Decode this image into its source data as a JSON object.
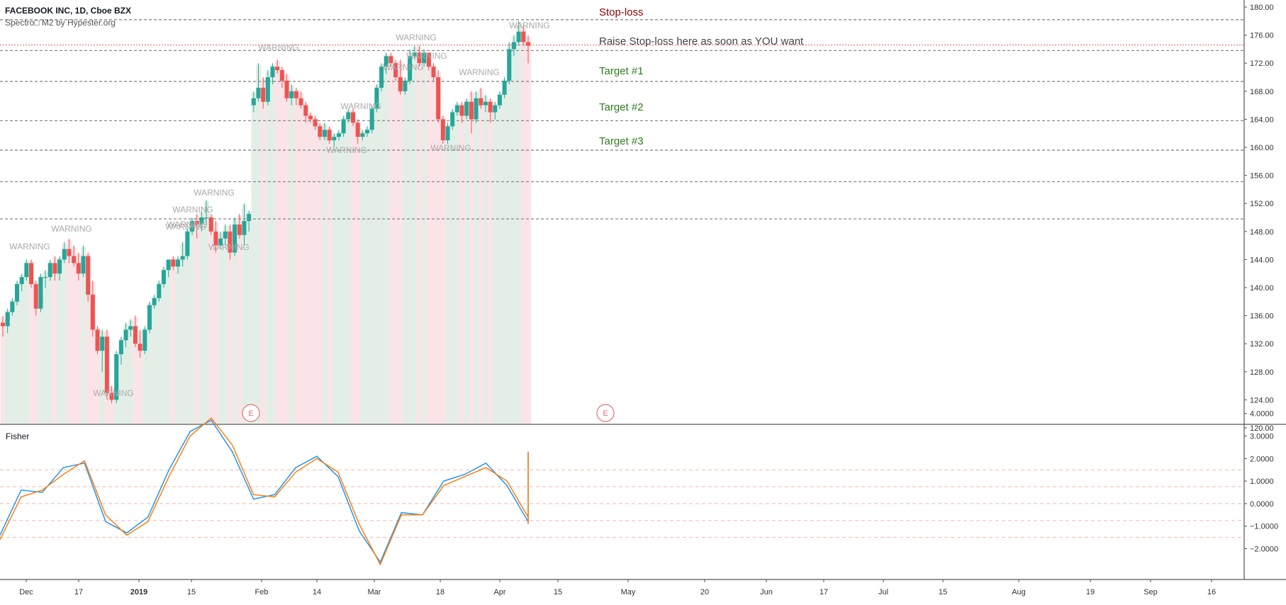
{
  "header": {
    "title": "FACEBOOK INC, 1D, Cboe BZX",
    "indicator": "Spectro□ M2 by Hypester.org"
  },
  "lower_pane": {
    "label": "Fisher"
  },
  "annotations": {
    "stop_loss": "Stop-loss",
    "raise_stop": "Raise Stop-loss here as soon as YOU want",
    "target1": "Target #1",
    "target2": "Target #2",
    "target3": "Target #3",
    "warning": "WARNING",
    "earnings": "E"
  },
  "colors": {
    "up": "#26a69a",
    "down": "#ef5350",
    "fisher_blue": "#2196f3",
    "fisher_orange": "#ff7f0e",
    "stop_red": "#8b0000",
    "target_green": "#2e7d1f",
    "bg_green": "#e3efe6",
    "bg_red": "#fbe4e8"
  },
  "chart_data": [
    {
      "type": "candlestick",
      "title": "FACEBOOK INC, 1D, Cboe BZX",
      "ylim": [
        120,
        180
      ],
      "y_ticks": [
        "180.00",
        "176.00",
        "172.00",
        "168.00",
        "164.00",
        "160.00",
        "156.00",
        "152.00",
        "148.00",
        "144.00",
        "140.00",
        "136.00",
        "132.00",
        "128.00",
        "124.00",
        "120.00"
      ],
      "x_ticks": [
        "Dec",
        "17",
        "2019",
        "15",
        "Feb",
        "14",
        "Mar",
        "18",
        "Apr",
        "15",
        "May",
        "20",
        "Jun",
        "17",
        "Jul",
        "15",
        "Aug",
        "19",
        "Sep",
        "16"
      ],
      "horizontal_levels": [
        {
          "value": 178.2,
          "label": "Stop-loss"
        },
        {
          "value": 174.6,
          "label": "Raise Stop-loss here as soon as YOU want"
        },
        {
          "value": 173.8,
          "label": ""
        },
        {
          "value": 169.4,
          "label": "Target #1"
        },
        {
          "value": 163.8,
          "label": "Target #2"
        },
        {
          "value": 159.6,
          "label": "Target #3"
        },
        {
          "value": 155.1,
          "label": ""
        },
        {
          "value": 149.8,
          "label": ""
        }
      ],
      "series": [
        {
          "name": "FACEBOOK INC",
          "ohlc": [
            [
              135,
              136,
              133,
              134.5
            ],
            [
              134.5,
              137,
              133.5,
              136.5
            ],
            [
              136.5,
              138.5,
              136,
              138
            ],
            [
              138,
              141,
              137.5,
              140.5
            ],
            [
              140.5,
              142,
              139.5,
              141.5
            ],
            [
              141.5,
              144,
              141,
              143.5
            ],
            [
              143.5,
              144,
              140,
              140.5
            ],
            [
              140.5,
              141,
              136,
              137
            ],
            [
              137,
              142,
              136.5,
              141.5
            ],
            [
              141.5,
              142.5,
              140,
              141.5
            ],
            [
              141.5,
              144,
              141,
              143.5
            ],
            [
              143.5,
              144.5,
              141,
              142
            ],
            [
              142,
              144.5,
              141,
              144
            ],
            [
              144,
              146.5,
              143.5,
              145.5
            ],
            [
              145.5,
              147,
              143.5,
              144.5
            ],
            [
              144.5,
              146,
              143,
              143.5
            ],
            [
              143.5,
              145,
              141,
              142
            ],
            [
              142,
              146,
              141.5,
              144.5
            ],
            [
              144.5,
              145,
              138,
              139
            ],
            [
              139,
              141,
              133,
              134
            ],
            [
              134,
              134.5,
              130.5,
              131
            ],
            [
              131,
              134,
              128,
              133
            ],
            [
              133,
              134,
              124,
              125
            ],
            [
              125,
              126,
              123.5,
              124
            ],
            [
              124,
              131,
              123.5,
              130.5
            ],
            [
              130.5,
              133,
              129,
              132.5
            ],
            [
              132.5,
              135,
              131.5,
              134
            ],
            [
              134,
              135.5,
              133,
              134.5
            ],
            [
              134.5,
              136,
              131.5,
              132
            ],
            [
              132,
              134,
              130,
              131
            ],
            [
              131,
              134.5,
              130.5,
              134
            ],
            [
              134,
              138,
              133.5,
              137.5
            ],
            [
              137.5,
              139,
              137,
              138.5
            ],
            [
              138.5,
              141,
              138,
              140.5
            ],
            [
              140.5,
              143,
              140,
              142.5
            ],
            [
              142.5,
              144,
              141.5,
              144
            ],
            [
              144,
              144.5,
              142.5,
              143
            ],
            [
              143,
              144.5,
              142,
              144
            ],
            [
              144,
              146.5,
              143,
              144.5
            ],
            [
              144.5,
              148.5,
              144,
              148
            ],
            [
              148,
              150,
              147.5,
              149.5
            ],
            [
              149.5,
              150.5,
              147,
              149
            ],
            [
              149,
              151,
              148,
              150
            ],
            [
              150,
              152.5,
              149,
              150
            ],
            [
              150,
              150.5,
              147.5,
              148
            ],
            [
              148,
              149.5,
              145,
              146
            ],
            [
              146,
              148,
              145.5,
              147
            ],
            [
              147,
              149,
              146,
              148
            ],
            [
              148,
              149,
              144,
              145
            ],
            [
              145,
              150,
              144.5,
              149
            ],
            [
              149,
              150.5,
              147,
              147.5
            ],
            [
              147.5,
              152,
              146,
              149.5
            ],
            [
              149.5,
              151,
              148,
              150.5
            ],
            [
              166,
              168,
              165,
              167
            ],
            [
              167,
              172,
              166.5,
              168.5
            ],
            [
              168.5,
              170,
              165.5,
              166.5
            ],
            [
              166.5,
              171,
              166,
              170
            ],
            [
              170,
              172,
              169,
              171.5
            ],
            [
              171.5,
              172.5,
              170.5,
              171
            ],
            [
              171,
              171.5,
              168.5,
              169.5
            ],
            [
              169.5,
              170.5,
              166.5,
              167
            ],
            [
              167,
              169,
              166,
              168
            ],
            [
              168,
              168.5,
              166,
              167
            ],
            [
              167,
              168,
              165.5,
              166
            ],
            [
              166,
              166.5,
              163.5,
              164.5
            ],
            [
              164.5,
              165,
              163.5,
              164
            ],
            [
              164,
              164.5,
              162.5,
              163
            ],
            [
              163,
              163.5,
              161,
              161.5
            ],
            [
              161.5,
              163.5,
              161,
              162.5
            ],
            [
              162.5,
              163,
              160.5,
              161
            ],
            [
              161,
              162,
              160,
              161.5
            ],
            [
              161.5,
              162.5,
              161,
              162
            ],
            [
              162,
              164.5,
              161.5,
              164
            ],
            [
              164,
              165.5,
              163.5,
              165
            ],
            [
              165,
              165.5,
              163,
              163.5
            ],
            [
              163.5,
              164,
              160.5,
              161.5
            ],
            [
              161.5,
              162.5,
              161,
              162
            ],
            [
              162,
              163,
              161.5,
              162.5
            ],
            [
              162.5,
              166,
              162,
              165.5
            ],
            [
              165.5,
              169,
              165,
              168.5
            ],
            [
              168.5,
              172,
              168,
              171.5
            ],
            [
              171.5,
              173.5,
              170.5,
              173
            ],
            [
              173,
              173.5,
              171.5,
              172
            ],
            [
              172,
              172.5,
              169.5,
              170
            ],
            [
              170,
              172.5,
              167.5,
              168
            ],
            [
              168,
              170,
              167.5,
              169.5
            ],
            [
              169.5,
              174,
              169,
              173
            ],
            [
              173,
              174.5,
              172.5,
              173.5
            ],
            [
              173.5,
              174.5,
              171.5,
              172
            ],
            [
              172,
              174,
              171.5,
              173.5
            ],
            [
              173.5,
              173.5,
              171,
              171.5
            ],
            [
              171.5,
              172,
              169.5,
              170
            ],
            [
              170,
              171,
              163.5,
              164
            ],
            [
              164,
              164.5,
              160.5,
              161
            ],
            [
              161,
              163.5,
              160.5,
              163
            ],
            [
              163,
              165.5,
              162.5,
              165
            ],
            [
              165,
              166.5,
              164.5,
              166
            ],
            [
              166,
              166.5,
              163.5,
              164.5
            ],
            [
              164.5,
              167,
              164,
              166.5
            ],
            [
              166.5,
              168,
              162,
              164
            ],
            [
              164,
              168,
              163.5,
              167
            ],
            [
              167,
              168.5,
              165.5,
              166
            ],
            [
              166,
              167.5,
              165,
              166.5
            ],
            [
              166.5,
              167,
              163.5,
              165
            ],
            [
              165,
              166.5,
              164,
              166
            ],
            [
              166,
              168,
              165.5,
              167.5
            ],
            [
              167.5,
              170,
              167,
              169.5
            ],
            [
              169.5,
              175,
              169,
              174
            ],
            [
              174,
              176,
              173,
              175
            ],
            [
              175,
              178,
              174.5,
              176.5
            ],
            [
              176.5,
              177.5,
              174.5,
              175
            ],
            [
              175,
              176,
              172,
              174.5
            ]
          ]
        }
      ]
    },
    {
      "type": "line",
      "title": "Fisher",
      "ylim": [
        -3.2,
        4.2
      ],
      "y_ticks": [
        "4.0000",
        "3.0000",
        "2.0000",
        "1.0000",
        "0.0000",
        "−1.0000",
        "−2.0000"
      ],
      "levels": [
        1.5,
        0.75,
        0,
        -0.75,
        -1.5
      ],
      "series": [
        {
          "name": "Fisher",
          "color": "#2196f3",
          "x": [
            0,
            3,
            6,
            9,
            12,
            15,
            18,
            21,
            24,
            27,
            30,
            33,
            36,
            39,
            42,
            45,
            48,
            51,
            54,
            57,
            60,
            63,
            66,
            69,
            72,
            75,
            78,
            81,
            84,
            87,
            90,
            93,
            96,
            99,
            102,
            105,
            108,
            111,
            114,
            117,
            120
          ],
          "values": [
            -1.4,
            0.6,
            0.5,
            1.6,
            1.8,
            -0.8,
            -1.3,
            -0.6,
            1.5,
            3.2,
            3.7,
            2.3,
            0.2,
            0.4,
            1.6,
            2.1,
            1.2,
            -1.2,
            -2.6,
            -0.4,
            -0.5,
            1.0,
            1.3,
            1.8,
            0.8,
            -0.8,
            -0.9,
            0.1,
            0.6,
            1.8,
            2.2,
            2.3,
            2.2,
            2.2,
            2.2,
            2.2,
            2.2,
            2.2,
            2.2,
            2.2,
            2.2
          ]
        },
        {
          "name": "Trigger",
          "color": "#ff7f0e",
          "x": [
            0,
            3,
            6,
            9,
            12,
            15,
            18,
            21,
            24,
            27,
            30,
            33,
            36,
            39,
            42,
            45,
            48,
            51,
            54,
            57,
            60,
            63,
            66,
            69,
            72,
            75,
            78,
            81,
            84,
            87,
            90,
            93,
            96,
            99,
            102,
            105,
            108,
            111,
            114,
            117,
            120
          ],
          "values": [
            -1.6,
            0.3,
            0.6,
            1.3,
            1.9,
            -0.5,
            -1.4,
            -0.8,
            1.2,
            3.0,
            3.8,
            2.6,
            0.4,
            0.3,
            1.4,
            2.0,
            1.4,
            -0.9,
            -2.7,
            -0.5,
            -0.5,
            0.8,
            1.2,
            1.6,
            1.0,
            -0.6,
            -0.9,
            -0.1,
            0.5,
            1.6,
            2.2,
            2.3,
            2.2,
            2.2,
            2.2,
            2.2,
            2.2,
            2.2,
            2.2,
            2.2,
            2.2
          ]
        }
      ]
    }
  ]
}
